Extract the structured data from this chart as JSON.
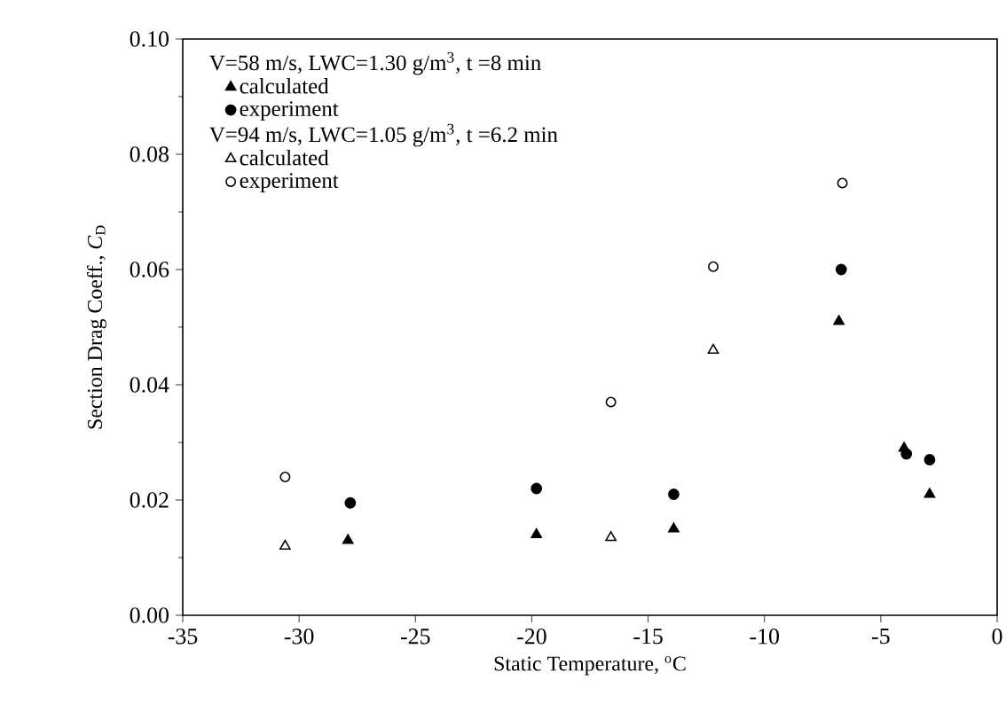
{
  "chart_data": {
    "type": "scatter",
    "xlabel": "Static Temperature, $^{o}$C",
    "ylabel": "Section Drag Coeff., *C*$_{D}$",
    "annotations": [
      "V=58 m/s, LWC=1.30 g/m$^{3}$, t =8 min",
      "V=94 m/s, LWC=1.05 g/m$^{3}$, t =6.2 min"
    ],
    "series": [
      {
        "name": "calculated",
        "color": "#000000",
        "marker": "triangle",
        "x": [
          -27.9,
          -19.8,
          -13.9,
          -6.8,
          -4.0,
          -2.9
        ],
        "values": [
          0.013,
          0.014,
          0.015,
          0.051,
          0.029,
          0.021
        ]
      },
      {
        "name": "experiment",
        "color": "#000000",
        "marker": "circle",
        "x": [
          -27.8,
          -19.8,
          -13.9,
          -6.7,
          -3.9,
          -2.9
        ],
        "values": [
          0.0195,
          0.022,
          0.021,
          0.06,
          0.028,
          0.027
        ]
      },
      {
        "name": "calculated",
        "color": "#000000",
        "marker": "triangle-open",
        "x": [
          -30.6,
          -16.6,
          -12.2
        ],
        "values": [
          0.012,
          0.0135,
          0.046
        ]
      },
      {
        "name": "experiment",
        "color": "#000000",
        "marker": "circle-open",
        "x": [
          -30.6,
          -16.6,
          -12.2,
          -6.65
        ],
        "values": [
          0.024,
          0.037,
          0.0605,
          0.075
        ]
      }
    ],
    "xlim": [
      -35,
      0
    ],
    "xticks": [
      -35,
      -30,
      -25,
      -20,
      -15,
      -10,
      -5,
      0
    ],
    "ylim": [
      0,
      0.1
    ],
    "yticks": [
      {
        "value": 0,
        "label": "0.00"
      },
      {
        "value": 0.02,
        "label": "0.02"
      },
      {
        "value": 0.04,
        "label": "0.04"
      },
      {
        "value": 0.06,
        "label": "0.06"
      },
      {
        "value": 0.08,
        "label": "0.08"
      },
      {
        "value": 0.1,
        "label": "0.10"
      }
    ],
    "legend": "top left",
    "grid": false
  }
}
